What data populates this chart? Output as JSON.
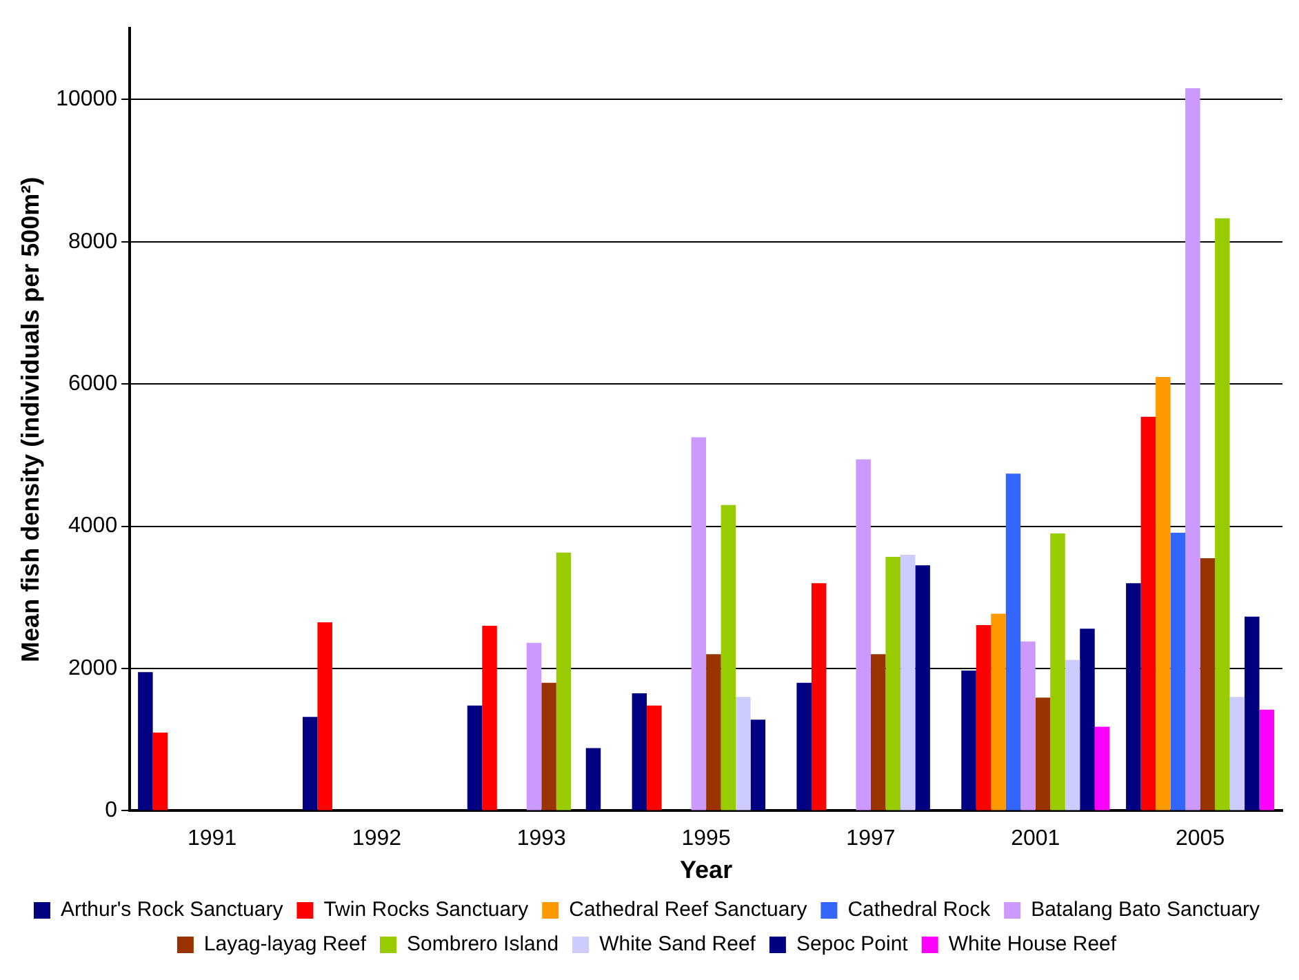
{
  "chart_data": {
    "type": "bar",
    "xlabel": "Year",
    "ylabel": "Mean fish density (individuals per 500m²)",
    "categories": [
      "1991",
      "1992",
      "1993",
      "1995",
      "1997",
      "2001",
      "2005"
    ],
    "ylim": [
      0,
      11000
    ],
    "yticks": [
      0,
      2000,
      4000,
      6000,
      8000,
      10000
    ],
    "grid": "y",
    "legend": "bottom",
    "series": [
      {
        "name": "Arthur's Rock Sanctuary",
        "color": "#000080",
        "values": [
          1950,
          1320,
          1480,
          1650,
          1800,
          1970,
          3200
        ]
      },
      {
        "name": "Twin Rocks Sanctuary",
        "color": "#ff0000",
        "values": [
          1100,
          2650,
          2600,
          1480,
          3200,
          2610,
          5540
        ]
      },
      {
        "name": "Cathedral Reef Sanctuary",
        "color": "#ff9900",
        "values": [
          null,
          null,
          null,
          null,
          null,
          2770,
          6100
        ]
      },
      {
        "name": "Cathedral Rock",
        "color": "#3366ff",
        "values": [
          null,
          null,
          null,
          null,
          null,
          4740,
          3910
        ]
      },
      {
        "name": "Batalang Bato Sanctuary",
        "color": "#cc99ff",
        "values": [
          null,
          null,
          2360,
          5250,
          4940,
          2380,
          10160
        ]
      },
      {
        "name": "Layag-layag Reef",
        "color": "#993300",
        "values": [
          null,
          null,
          1800,
          2200,
          2200,
          1590,
          3550
        ]
      },
      {
        "name": "Sombrero Island",
        "color": "#99cc00",
        "values": [
          null,
          null,
          3630,
          4300,
          3570,
          3900,
          8330
        ]
      },
      {
        "name": "White Sand Reef",
        "color": "#ccccff",
        "values": [
          null,
          null,
          null,
          1600,
          3600,
          2120,
          1600
        ]
      },
      {
        "name": "Sepoc Point",
        "color": "#000080",
        "values": [
          null,
          null,
          880,
          1280,
          3450,
          2560,
          2730
        ]
      },
      {
        "name": "White House Reef",
        "color": "#ff00ff",
        "values": [
          null,
          null,
          null,
          null,
          null,
          1180,
          1420
        ]
      }
    ]
  }
}
